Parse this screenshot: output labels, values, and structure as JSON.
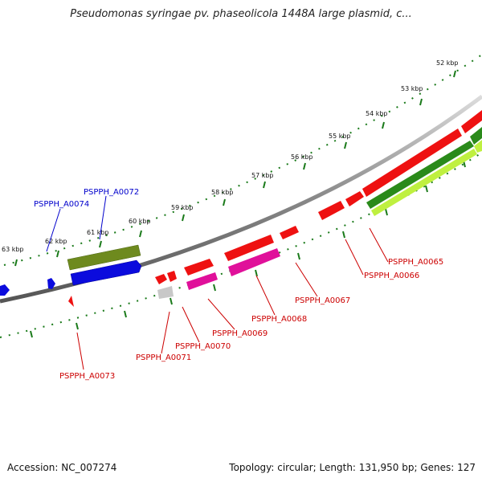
{
  "title": "Pseudomonas syringae pv. phaseolicola 1448A large plasmid, c...",
  "footer": {
    "accession": "Accession: NC_007274",
    "topology": "Topology: circular; Length: 131,950 bp; Genes: 127"
  },
  "ticks": [
    "52 kbp",
    "53 kbp",
    "54 kbp",
    "55 kbp",
    "56 kbp",
    "57 kbp",
    "58 kbp",
    "59 kbp",
    "60 kbp",
    "61 kbp",
    "62 kbp",
    "63 kbp"
  ],
  "genes_forward": [
    "PSPPH_A0072",
    "PSPPH_A0074"
  ],
  "genes_reverse": [
    "PSPPH_A0065",
    "PSPPH_A0066",
    "PSPPH_A0067",
    "PSPPH_A0068",
    "PSPPH_A0069",
    "PSPPH_A0070",
    "PSPPH_A0071",
    "PSPPH_A0073"
  ],
  "colors": {
    "forward_label": "#0000cc",
    "reverse_label": "#cc0000",
    "tick": "#1a7a1a",
    "backbone": "#888888",
    "cds_red": "#ee1111",
    "cds_magenta": "#e0109a",
    "cds_blue": "#0b0bdd",
    "cds_olive": "#6e8a1e",
    "cds_green": "#2a8a1a",
    "cds_lime": "#bff040",
    "cds_gray": "#c8c8c8"
  }
}
